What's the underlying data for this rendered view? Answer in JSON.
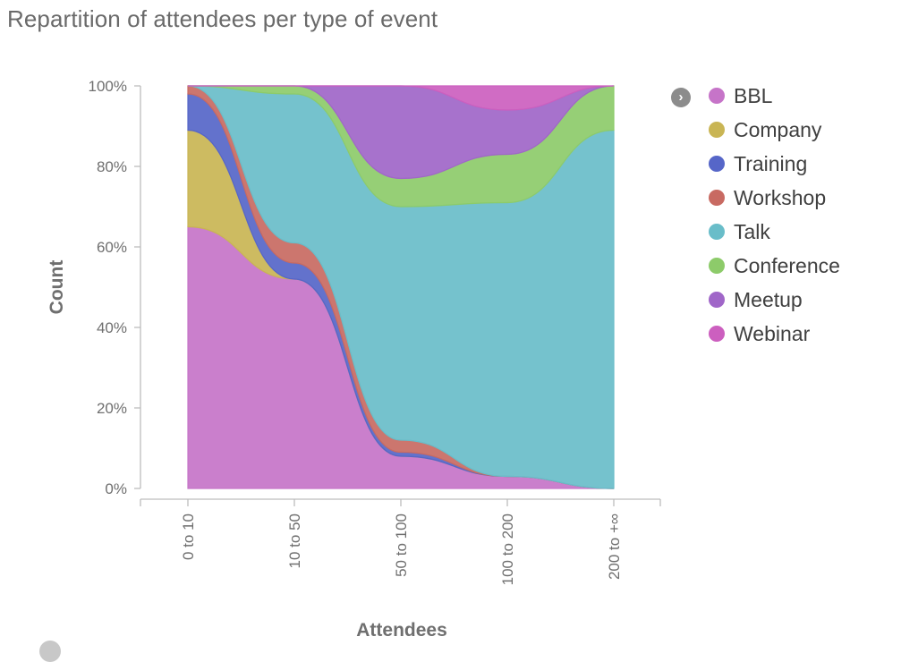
{
  "chart_data": {
    "type": "area",
    "stacked": true,
    "normalized": true,
    "title": "Repartition of attendees per type of event",
    "xlabel": "Attendees",
    "ylabel": "Count",
    "categories": [
      "0 to 10",
      "10 to 50",
      "50 to 100",
      "100 to 200",
      "200 to +∞"
    ],
    "y_ticks": [
      "0%",
      "20%",
      "40%",
      "60%",
      "80%",
      "100%"
    ],
    "ylim": [
      0,
      100
    ],
    "legend_position": "right",
    "series": [
      {
        "name": "BBL",
        "color": "#c674c8",
        "values": [
          65,
          52,
          8,
          3,
          0
        ]
      },
      {
        "name": "Company",
        "color": "#c9b554",
        "values": [
          24,
          0,
          0,
          0,
          0
        ]
      },
      {
        "name": "Training",
        "color": "#5666c8",
        "values": [
          9,
          4,
          1,
          0,
          0
        ]
      },
      {
        "name": "Workshop",
        "color": "#c86a62",
        "values": [
          2,
          5,
          3,
          0,
          0
        ]
      },
      {
        "name": "Talk",
        "color": "#69bdc9",
        "values": [
          0,
          37,
          58,
          68,
          89
        ]
      },
      {
        "name": "Conference",
        "color": "#8dcb6a",
        "values": [
          0,
          2,
          7,
          12,
          11
        ]
      },
      {
        "name": "Meetup",
        "color": "#a066c8",
        "values": [
          0,
          0,
          23,
          11,
          0
        ]
      },
      {
        "name": "Webinar",
        "color": "#cc5fbf",
        "values": [
          0,
          0,
          0,
          6,
          0
        ]
      }
    ]
  }
}
